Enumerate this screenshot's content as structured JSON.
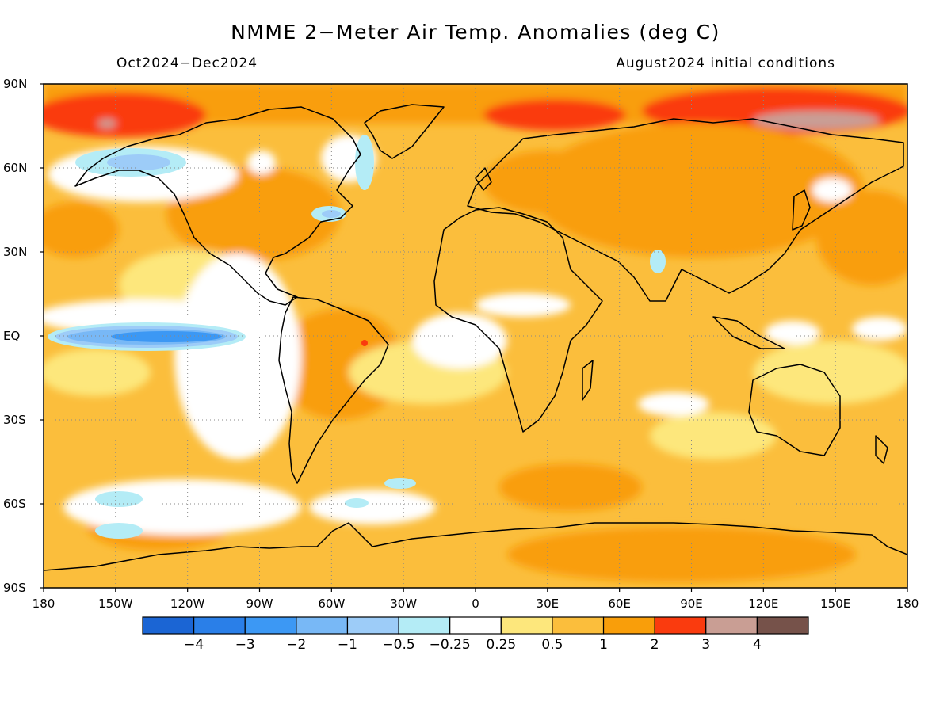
{
  "title": "NMME 2−Meter Air Temp. Anomalies (deg C)",
  "period": "Oct2024−Dec2024",
  "initial_conditions": "August2024 initial conditions",
  "lon_labels": [
    "180",
    "150W",
    "120W",
    "90W",
    "60W",
    "30W",
    "0",
    "30E",
    "60E",
    "90E",
    "120E",
    "150E",
    "180"
  ],
  "lat_labels": [
    "90N",
    "60N",
    "30N",
    "EQ",
    "30S",
    "60S",
    "90S"
  ],
  "colorbar": {
    "colors": [
      "#1b65d4",
      "#2a7fe8",
      "#3c98f4",
      "#78b8f6",
      "#9dccf8",
      "#b4ecf6",
      "#ffffff",
      "#fde77c",
      "#fbbe3c",
      "#f99e0a",
      "#fa3b0e",
      "#c99e94",
      "#76524a"
    ],
    "labels": [
      "−4",
      "−3",
      "−2",
      "−1",
      "−0.5",
      "−0.25",
      "0.25",
      "0.5",
      "1",
      "2",
      "3",
      "4"
    ]
  },
  "map": {
    "lon_range": [
      -180,
      180
    ],
    "lat_range": [
      -90,
      90
    ],
    "background_color": "#fbbe3c",
    "grid": "dotted, every 30 degrees"
  }
}
